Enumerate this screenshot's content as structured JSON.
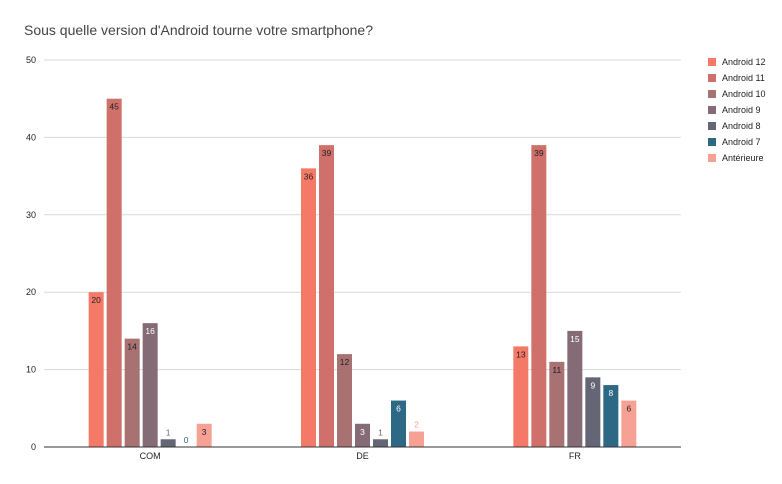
{
  "chart_data": {
    "type": "bar",
    "title": "Sous quelle version d'Android tourne votre smartphone?",
    "xlabel": "",
    "ylabel": "",
    "ylim": [
      0,
      50
    ],
    "yticks": [
      0,
      10,
      20,
      30,
      40,
      50
    ],
    "grid": true,
    "legend_position": "right",
    "categories": [
      "COM",
      "DE",
      "FR"
    ],
    "series": [
      {
        "name": "Android 12",
        "color": "#f47a67",
        "values": [
          20,
          36,
          13
        ]
      },
      {
        "name": "Android 11",
        "color": "#d0706a",
        "values": [
          45,
          39,
          39
        ]
      },
      {
        "name": "Android 10",
        "color": "#a87172",
        "values": [
          14,
          12,
          11
        ]
      },
      {
        "name": "Android 9",
        "color": "#846b76",
        "values": [
          16,
          3,
          15
        ]
      },
      {
        "name": "Android 8",
        "color": "#646675",
        "values": [
          1,
          1,
          9
        ]
      },
      {
        "name": "Android 7",
        "color": "#2d6885",
        "values": [
          0,
          6,
          8
        ]
      },
      {
        "name": "Antérieure",
        "color": "#f7a195",
        "values": [
          3,
          2,
          6
        ]
      }
    ]
  }
}
